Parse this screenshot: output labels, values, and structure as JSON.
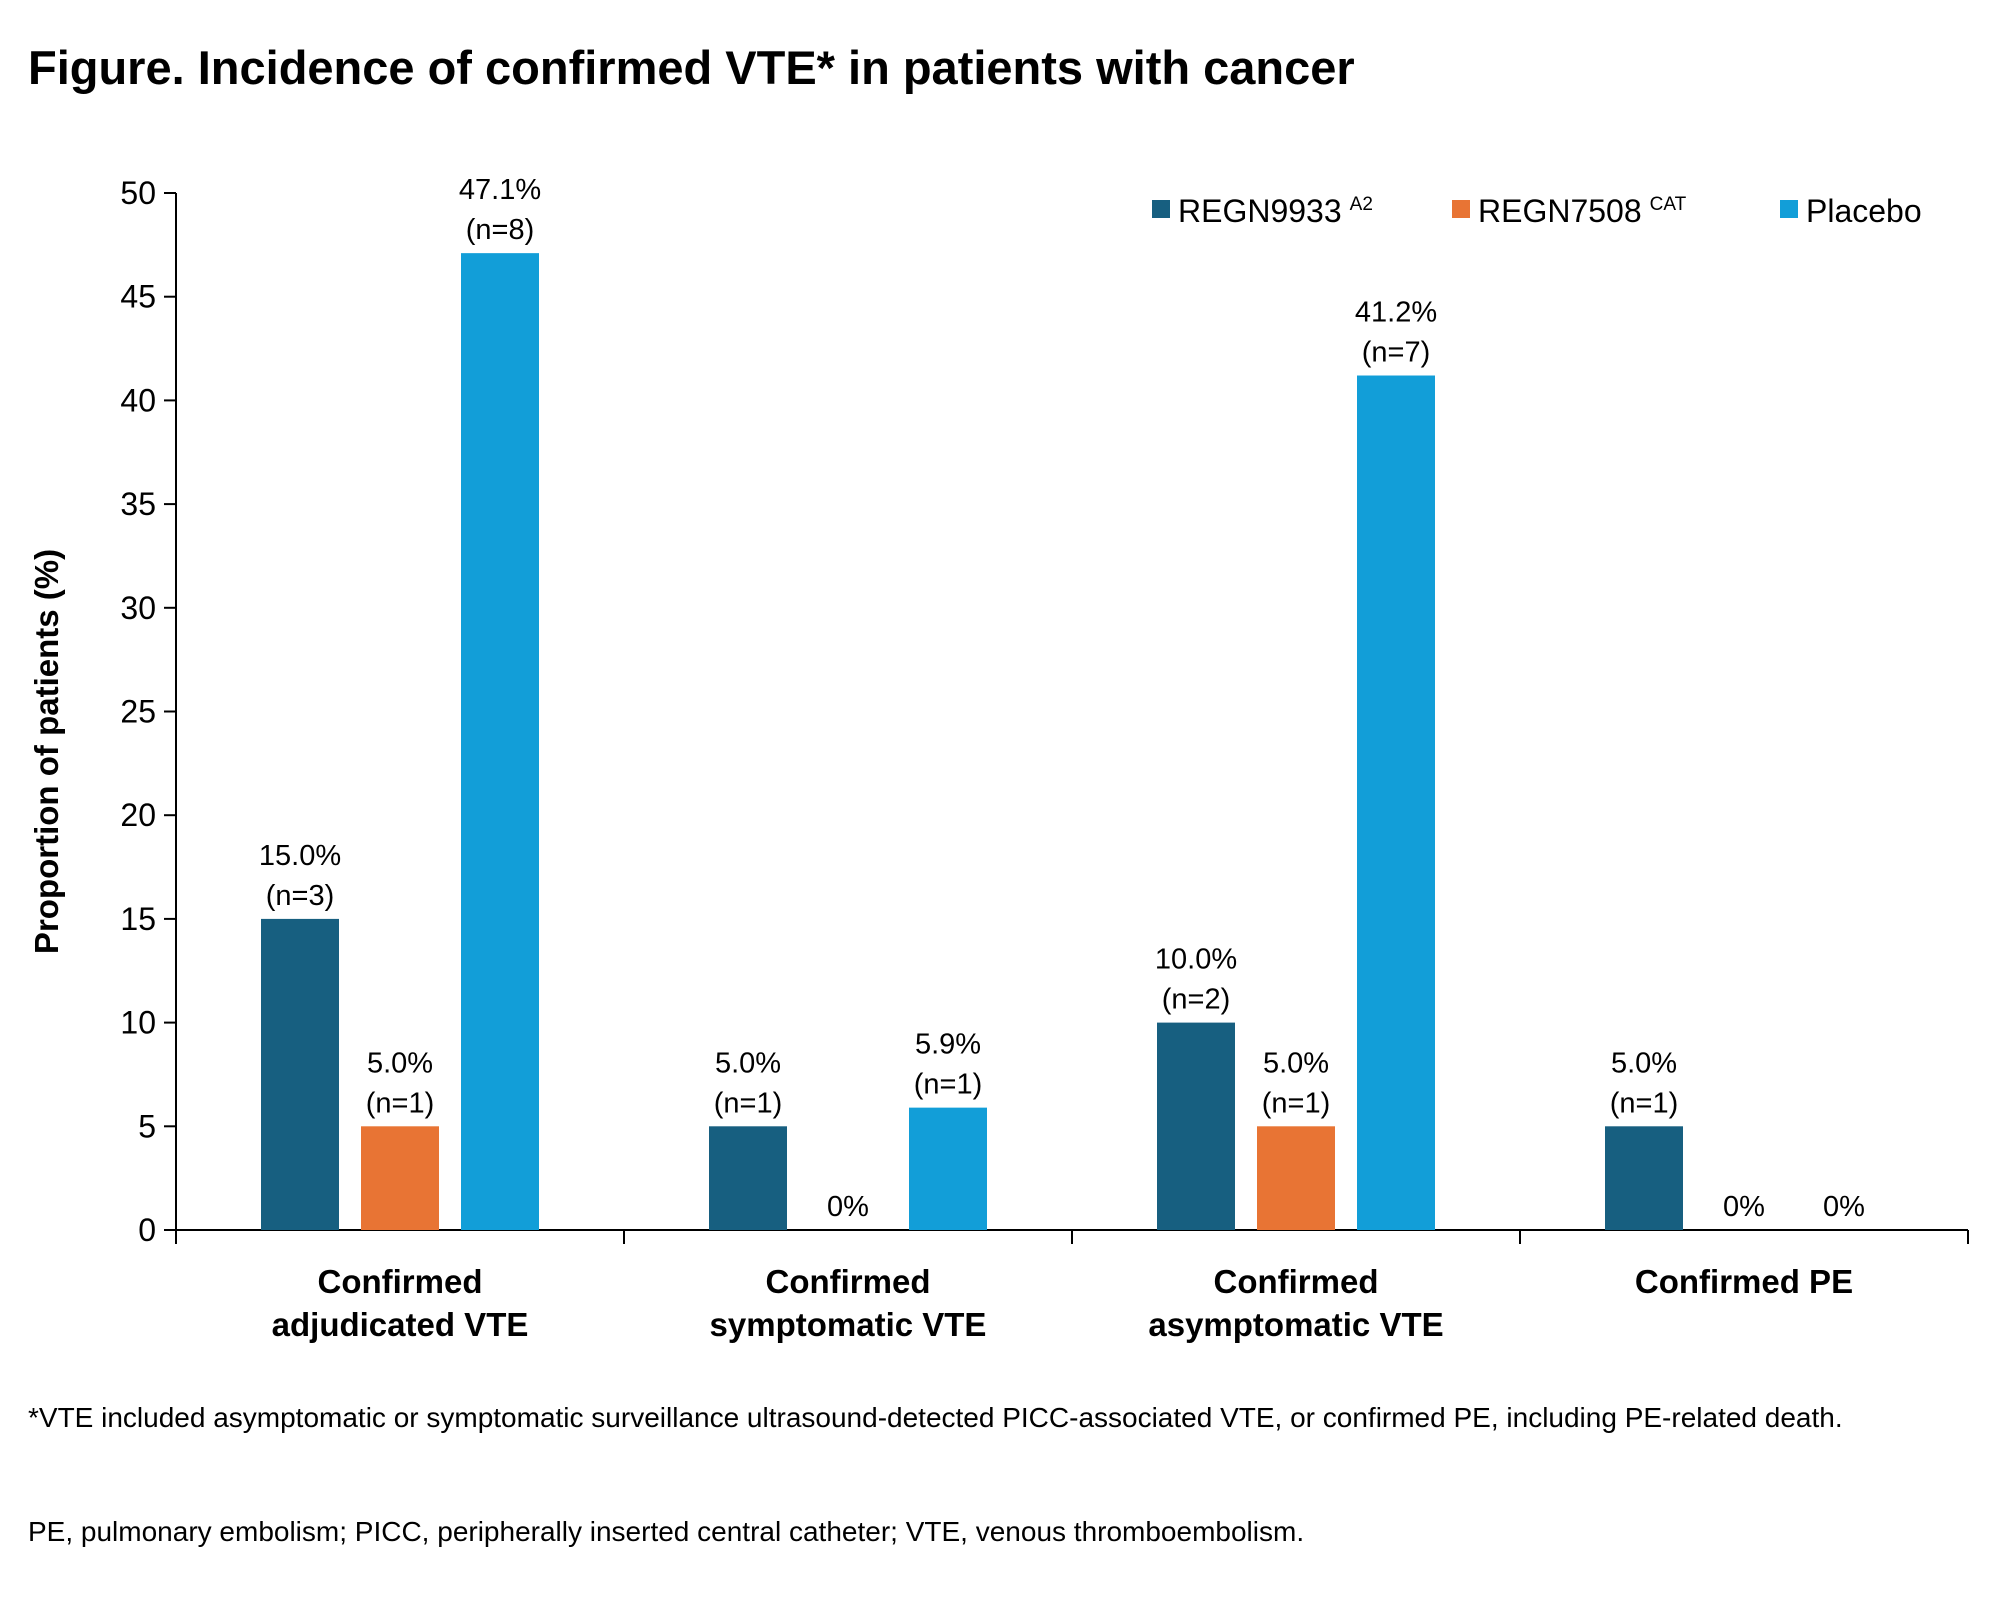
{
  "title": "Figure. Incidence of confirmed VTE* in patients with cancer",
  "footnotes": {
    "note1": "*VTE included asymptomatic or symptomatic surveillance ultrasound-detected PICC-associated VTE, or confirmed PE, including PE-related death.",
    "note2": "PE, pulmonary embolism; PICC, peripherally inserted central catheter; VTE, venous thromboembolism."
  },
  "chart_data": {
    "type": "bar",
    "ylabel": "Proportion of patients (%)",
    "xlabel": "",
    "ylim": [
      0,
      50
    ],
    "yticks": [
      0,
      5,
      10,
      15,
      20,
      25,
      30,
      35,
      40,
      45,
      50
    ],
    "categories": [
      [
        "Confirmed",
        "adjudicated VTE"
      ],
      [
        "Confirmed",
        "symptomatic VTE"
      ],
      [
        "Confirmed",
        "asymptomatic VTE"
      ],
      [
        "Confirmed PE"
      ]
    ],
    "series": [
      {
        "name": "REGN9933",
        "sup": "A2",
        "color": "#175f80",
        "values": [
          15.0,
          5.0,
          10.0,
          5.0
        ],
        "labels": [
          [
            "15.0%",
            "(n=3)"
          ],
          [
            "5.0%",
            "(n=1)"
          ],
          [
            "10.0%",
            "(n=2)"
          ],
          [
            "5.0%",
            "(n=1)"
          ]
        ]
      },
      {
        "name": "REGN7508",
        "sup": "CAT",
        "color": "#e87434",
        "values": [
          5.0,
          0,
          5.0,
          0
        ],
        "labels": [
          [
            "5.0%",
            "(n=1)"
          ],
          [
            "0%"
          ],
          [
            "5.0%",
            "(n=1)"
          ],
          [
            "0%"
          ]
        ]
      },
      {
        "name": "Placebo",
        "sup": "",
        "color": "#129ed8",
        "values": [
          47.1,
          5.9,
          41.2,
          0
        ],
        "labels": [
          [
            "47.1%",
            "(n=8)"
          ],
          [
            "5.9%",
            "(n=1)"
          ],
          [
            "41.2%",
            "(n=7)"
          ],
          [
            "0%"
          ]
        ]
      }
    ],
    "legend_position": "top-right",
    "grid": false
  }
}
